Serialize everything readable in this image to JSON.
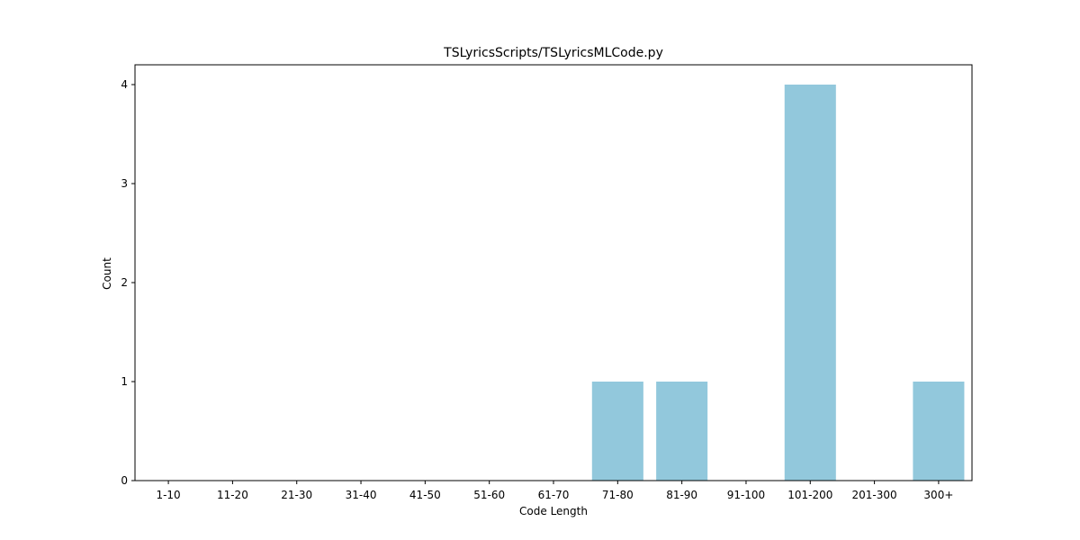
{
  "chart_data": {
    "type": "bar",
    "title": "TSLyricsScripts/TSLyricsMLCode.py",
    "xlabel": "Code Length",
    "ylabel": "Count",
    "categories": [
      "1-10",
      "11-20",
      "21-30",
      "31-40",
      "41-50",
      "51-60",
      "61-70",
      "71-80",
      "81-90",
      "91-100",
      "101-200",
      "201-300",
      "300+"
    ],
    "values": [
      0,
      0,
      0,
      0,
      0,
      0,
      0,
      1,
      1,
      0,
      4,
      0,
      1
    ],
    "ylim": [
      0,
      4.2
    ],
    "yticks": [
      0,
      1,
      2,
      3,
      4
    ],
    "bar_color": "#92c8dc",
    "grid": false,
    "legend": "none"
  }
}
